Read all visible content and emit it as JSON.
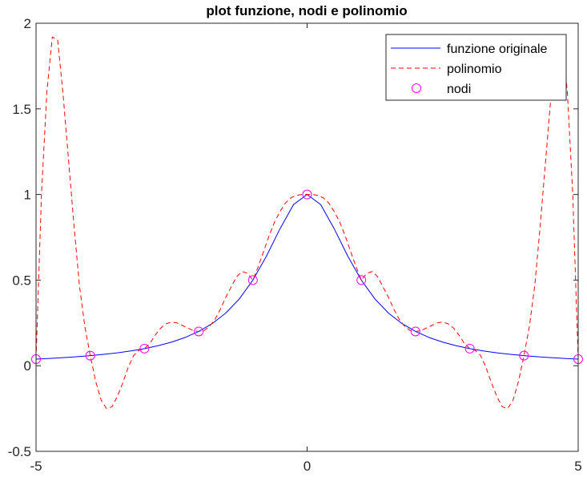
{
  "chart_data": {
    "type": "line",
    "title": "plot funzione, nodi e polinomio",
    "xlabel": "",
    "ylabel": "",
    "xlim": [
      -5,
      5
    ],
    "ylim": [
      -0.5,
      2
    ],
    "x_ticks": [
      -5,
      0,
      5
    ],
    "y_ticks": [
      -0.5,
      0,
      0.5,
      1,
      1.5,
      2
    ],
    "x_tick_labels": [
      "-5",
      "0",
      "5"
    ],
    "y_tick_labels": [
      "-0.5",
      "0",
      "0.5",
      "1",
      "1.5",
      "2"
    ],
    "grid": false,
    "legend_position": "top-right",
    "series": [
      {
        "name": "funzione originale",
        "style": "solid",
        "color": "#0000ff",
        "x": [
          -5,
          -4.75,
          -4.5,
          -4.25,
          -4,
          -3.75,
          -3.5,
          -3.25,
          -3,
          -2.75,
          -2.5,
          -2.25,
          -2,
          -1.75,
          -1.5,
          -1.25,
          -1,
          -0.75,
          -0.5,
          -0.25,
          0,
          0.25,
          0.5,
          0.75,
          1,
          1.25,
          1.5,
          1.75,
          2,
          2.25,
          2.5,
          2.75,
          3,
          3.25,
          3.5,
          3.75,
          4,
          4.25,
          4.5,
          4.75,
          5
        ],
        "y": [
          0.0385,
          0.0424,
          0.0471,
          0.0525,
          0.0588,
          0.0664,
          0.0755,
          0.0865,
          0.1,
          0.1168,
          0.1379,
          0.1649,
          0.2,
          0.2462,
          0.3077,
          0.3902,
          0.5,
          0.64,
          0.8,
          0.9412,
          1,
          0.9412,
          0.8,
          0.64,
          0.5,
          0.3902,
          0.3077,
          0.2462,
          0.2,
          0.1649,
          0.1379,
          0.1168,
          0.1,
          0.0865,
          0.0755,
          0.0664,
          0.0588,
          0.0525,
          0.0471,
          0.0424,
          0.0385
        ]
      },
      {
        "name": "polinomio",
        "style": "dashed",
        "color": "#ff0000",
        "x": [
          -5,
          -4.9,
          -4.8,
          -4.7,
          -4.6,
          -4.5,
          -4.4,
          -4.3,
          -4.2,
          -4.1,
          -4,
          -3.9,
          -3.8,
          -3.7,
          -3.6,
          -3.5,
          -3.4,
          -3.3,
          -3.2,
          -3.1,
          -3,
          -2.9,
          -2.8,
          -2.7,
          -2.6,
          -2.5,
          -2.4,
          -2.3,
          -2.2,
          -2.1,
          -2,
          -1.9,
          -1.8,
          -1.7,
          -1.6,
          -1.5,
          -1.4,
          -1.3,
          -1.2,
          -1.1,
          -1,
          -0.9,
          -0.8,
          -0.7,
          -0.6,
          -0.5,
          -0.4,
          -0.3,
          -0.2,
          -0.1,
          0,
          0.1,
          0.2,
          0.3,
          0.4,
          0.5,
          0.6,
          0.7,
          0.8,
          0.9,
          1,
          1.1,
          1.2,
          1.3,
          1.4,
          1.5,
          1.6,
          1.7,
          1.8,
          1.9,
          2,
          2.1,
          2.2,
          2.3,
          2.4,
          2.5,
          2.6,
          2.7,
          2.8,
          2.9,
          3,
          3.1,
          3.2,
          3.3,
          3.4,
          3.5,
          3.6,
          3.7,
          3.8,
          3.9,
          4,
          4.1,
          4.2,
          4.3,
          4.4,
          4.5,
          4.6,
          4.7,
          4.8,
          4.9,
          5
        ],
        "y": [
          0.038,
          1.0,
          1.6,
          1.92,
          1.9,
          1.58,
          1.2,
          0.82,
          0.47,
          0.23,
          0.059,
          -0.09,
          -0.2,
          -0.25,
          -0.24,
          -0.18,
          -0.1,
          -0.01,
          0.06,
          0.09,
          0.1,
          0.13,
          0.18,
          0.22,
          0.245,
          0.255,
          0.25,
          0.235,
          0.22,
          0.205,
          0.2,
          0.205,
          0.23,
          0.27,
          0.33,
          0.4,
          0.46,
          0.52,
          0.55,
          0.54,
          0.5,
          0.58,
          0.67,
          0.76,
          0.84,
          0.9,
          0.95,
          0.98,
          0.995,
          1.0,
          1.0,
          1.0,
          0.995,
          0.98,
          0.95,
          0.9,
          0.84,
          0.76,
          0.67,
          0.58,
          0.5,
          0.54,
          0.55,
          0.52,
          0.46,
          0.4,
          0.33,
          0.27,
          0.23,
          0.205,
          0.2,
          0.205,
          0.22,
          0.235,
          0.25,
          0.255,
          0.245,
          0.22,
          0.18,
          0.13,
          0.1,
          0.09,
          0.06,
          -0.01,
          -0.1,
          -0.18,
          -0.24,
          -0.25,
          -0.2,
          -0.09,
          0.059,
          0.23,
          0.47,
          0.82,
          1.2,
          1.58,
          1.9,
          1.92,
          1.6,
          1.0,
          0.038
        ]
      },
      {
        "name": "nodi",
        "style": "markers",
        "marker": "circle",
        "color": "#ff00ff",
        "x": [
          -5,
          -4,
          -3,
          -2,
          -1,
          0,
          1,
          2,
          3,
          4,
          5
        ],
        "y": [
          0.0385,
          0.0588,
          0.1,
          0.2,
          0.5,
          1,
          0.5,
          0.2,
          0.1,
          0.0588,
          0.0385
        ]
      }
    ]
  }
}
